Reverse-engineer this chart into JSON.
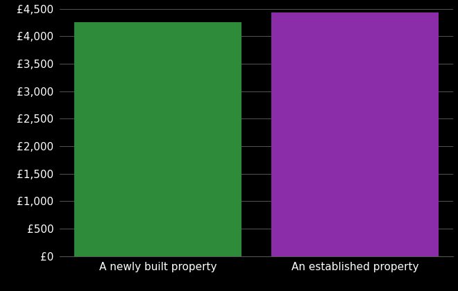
{
  "categories": [
    "A newly built property",
    "An established property"
  ],
  "values": [
    4250,
    4430
  ],
  "bar_colors": [
    "#2e8b3a",
    "#8b2da8"
  ],
  "background_color": "#000000",
  "text_color": "#ffffff",
  "grid_color": "#555555",
  "ylim": [
    0,
    4500
  ],
  "ytick_step": 500,
  "bar_width": 0.85,
  "xlim": [
    -0.5,
    1.5
  ]
}
